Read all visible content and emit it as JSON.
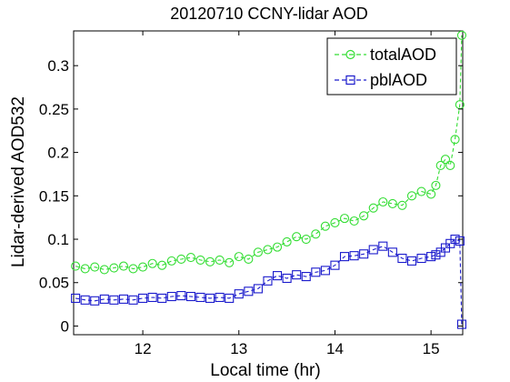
{
  "chart_data": {
    "type": "line",
    "title": "20120710 CCNY-lidar AOD",
    "xlabel": "Local time (hr)",
    "ylabel": "Lidar-derived AOD532",
    "xlim": [
      11.28,
      15.33
    ],
    "ylim": [
      -0.01,
      0.34
    ],
    "xticks": [
      12,
      13,
      14,
      15
    ],
    "yticks": [
      0,
      0.05,
      0.1,
      0.15,
      0.2,
      0.25,
      0.3
    ],
    "ytick_labels": [
      "0",
      "0.05",
      "0.1",
      "0.15",
      "0.2",
      "0.25",
      "0.3"
    ],
    "legend_position": "top-right",
    "grid": false,
    "series": [
      {
        "name": "totalAOD",
        "color": "#33dd33",
        "marker": "circle",
        "line_style": "dashed",
        "x": [
          11.3,
          11.4,
          11.5,
          11.6,
          11.7,
          11.8,
          11.9,
          12.0,
          12.1,
          12.2,
          12.3,
          12.4,
          12.5,
          12.6,
          12.7,
          12.8,
          12.9,
          13.0,
          13.1,
          13.2,
          13.3,
          13.4,
          13.5,
          13.6,
          13.7,
          13.8,
          13.9,
          14.0,
          14.1,
          14.2,
          14.3,
          14.4,
          14.5,
          14.6,
          14.7,
          14.8,
          14.9,
          15.0,
          15.05,
          15.1,
          15.15,
          15.2,
          15.25,
          15.3,
          15.32
        ],
        "values": [
          0.069,
          0.066,
          0.068,
          0.065,
          0.067,
          0.069,
          0.066,
          0.068,
          0.072,
          0.07,
          0.075,
          0.077,
          0.079,
          0.076,
          0.074,
          0.076,
          0.073,
          0.08,
          0.077,
          0.085,
          0.088,
          0.091,
          0.097,
          0.103,
          0.1,
          0.106,
          0.115,
          0.119,
          0.124,
          0.121,
          0.127,
          0.136,
          0.143,
          0.141,
          0.139,
          0.15,
          0.155,
          0.152,
          0.162,
          0.185,
          0.192,
          0.185,
          0.215,
          0.255,
          0.335
        ]
      },
      {
        "name": "pblAOD",
        "color": "#1a1acc",
        "marker": "square",
        "line_style": "dashed",
        "x": [
          11.3,
          11.4,
          11.5,
          11.6,
          11.7,
          11.8,
          11.9,
          12.0,
          12.1,
          12.2,
          12.3,
          12.4,
          12.5,
          12.6,
          12.7,
          12.8,
          12.9,
          13.0,
          13.1,
          13.2,
          13.3,
          13.4,
          13.5,
          13.6,
          13.7,
          13.8,
          13.9,
          14.0,
          14.1,
          14.2,
          14.3,
          14.4,
          14.5,
          14.6,
          14.7,
          14.8,
          14.9,
          15.0,
          15.05,
          15.1,
          15.15,
          15.2,
          15.25,
          15.3,
          15.32
        ],
        "values": [
          0.032,
          0.03,
          0.029,
          0.031,
          0.03,
          0.031,
          0.03,
          0.032,
          0.033,
          0.032,
          0.034,
          0.035,
          0.034,
          0.033,
          0.032,
          0.033,
          0.032,
          0.037,
          0.04,
          0.043,
          0.052,
          0.058,
          0.055,
          0.059,
          0.057,
          0.062,
          0.064,
          0.07,
          0.08,
          0.081,
          0.083,
          0.088,
          0.092,
          0.085,
          0.078,
          0.075,
          0.078,
          0.08,
          0.082,
          0.085,
          0.09,
          0.095,
          0.1,
          0.098,
          0.002
        ]
      }
    ]
  }
}
